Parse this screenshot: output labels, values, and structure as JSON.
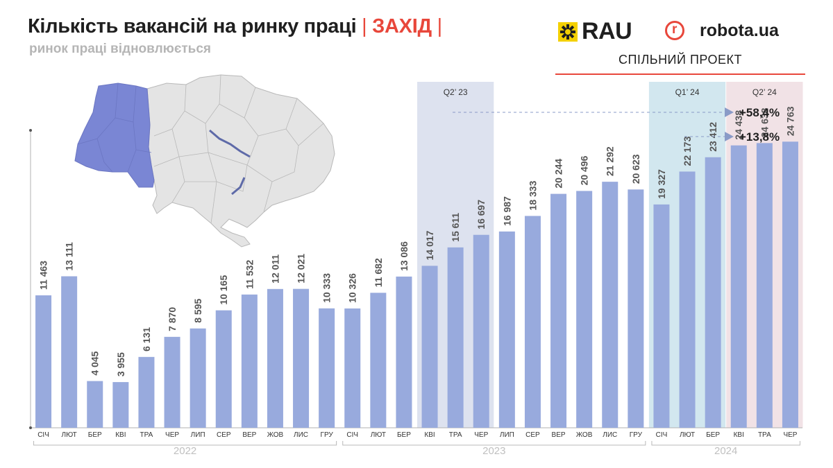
{
  "header": {
    "title_main": "Кількість вакансій на ринку праці",
    "title_region": "ЗАХІД",
    "subtitle": "ринок праці відновлюється"
  },
  "brand": {
    "rau": "RAU",
    "robota_symbol": "r",
    "robota": "robota.ua",
    "joint": "СПІЛЬНИЙ ПРОЕКТ"
  },
  "colors": {
    "bar": "#98aadd",
    "q2_23_band": "#dde2ef",
    "q1_24_band": "#d2e7ef",
    "q2_24_band": "#f1e2e6",
    "map_highlight": "#7a86d4",
    "map_other": "#e4e4e4",
    "accent": "#e8473b"
  },
  "annotations": [
    {
      "label": "+58,4%"
    },
    {
      "label": "+13,8%"
    }
  ],
  "chart_data": {
    "type": "bar",
    "categories": [
      "СІЧ",
      "ЛЮТ",
      "БЕР",
      "КВІ",
      "ТРА",
      "ЧЕР",
      "ЛИП",
      "СЕР",
      "ВЕР",
      "ЖОВ",
      "ЛИС",
      "ГРУ",
      "СІЧ",
      "ЛЮТ",
      "БЕР",
      "КВІ",
      "ТРА",
      "ЧЕР",
      "ЛИП",
      "СЕР",
      "ВЕР",
      "ЖОВ",
      "ЛИС",
      "ГРУ",
      "СІЧ",
      "ЛЮТ",
      "БЕР",
      "КВІ",
      "ТРА",
      "ЧЕР"
    ],
    "values": [
      11463,
      13111,
      4045,
      3955,
      6131,
      7870,
      8595,
      10165,
      11532,
      12011,
      12021,
      10333,
      10326,
      11682,
      13086,
      14017,
      15611,
      16697,
      16987,
      18333,
      20244,
      20496,
      21292,
      20623,
      19327,
      22173,
      23412,
      24438,
      24638,
      24763
    ],
    "value_labels": [
      "11 463",
      "13 111",
      "4 045",
      "3 955",
      "6 131",
      "7 870",
      "8 595",
      "10 165",
      "11 532",
      "12 011",
      "12 021",
      "10 333",
      "10 326",
      "11 682",
      "13 086",
      "14 017",
      "15 611",
      "16 697",
      "16 987",
      "18 333",
      "20 244",
      "20 496",
      "21 292",
      "20 623",
      "19 327",
      "22 173",
      "23 412",
      "24 438",
      "24 638",
      "24 763"
    ],
    "years": [
      {
        "label": "2022",
        "start": 0,
        "end": 11
      },
      {
        "label": "2023",
        "start": 12,
        "end": 23
      },
      {
        "label": "2024",
        "start": 24,
        "end": 29
      }
    ],
    "highlights": [
      {
        "label": "Q2’ 23",
        "start": 15,
        "end": 17,
        "color_key": "q2_23_band"
      },
      {
        "label": "Q1’ 24",
        "start": 24,
        "end": 26,
        "color_key": "q1_24_band"
      },
      {
        "label": "Q2’ 24",
        "start": 27,
        "end": 29,
        "color_key": "q2_24_band"
      }
    ],
    "ylim": [
      0,
      30000
    ]
  }
}
